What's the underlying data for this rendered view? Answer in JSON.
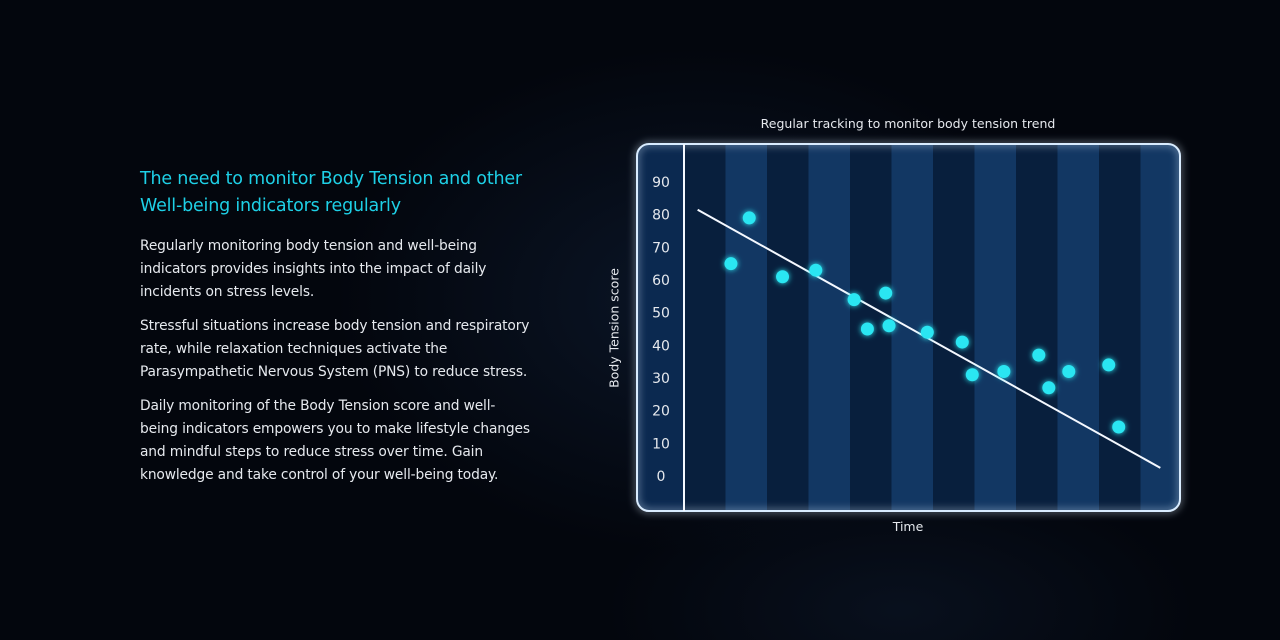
{
  "content": {
    "heading": "The need to monitor Body Tension and other Well-being indicators regularly",
    "paragraphs": [
      "Regularly monitoring body tension and well-being indicators provides insights into the impact of daily incidents on stress levels.",
      "Stressful situations increase body tension and respiratory rate, while relaxation techniques activate the Parasympathetic Nervous System (PNS) to reduce stress.",
      "Daily monitoring of the Body Tension score and well-being indicators empowers you to make lifestyle changes and mindful steps to reduce stress over time. Gain knowledge and take control of your well-being today."
    ]
  },
  "colors": {
    "heading": "#1ed0e6",
    "text": "#e6e9ee",
    "point": "#2ce6f2",
    "frame": "#d9ecff",
    "panel": "#0b2950",
    "band_light": "#143a66",
    "band_dark": "#081d3a"
  },
  "chart_data": {
    "type": "scatter",
    "title": "Regular tracking to monitor body tension trend",
    "xlabel": "Time",
    "ylabel": "Body Tension score",
    "ylim": [
      0,
      90
    ],
    "xlim": [
      0,
      28
    ],
    "y_ticks": [
      "0",
      "10",
      "20",
      "30",
      "40",
      "50",
      "60",
      "70",
      "80",
      "90"
    ],
    "grid": "vertical shaded bands",
    "points": [
      {
        "x": 2.7,
        "y": 65
      },
      {
        "x": 3.8,
        "y": 79
      },
      {
        "x": 5.8,
        "y": 61
      },
      {
        "x": 7.8,
        "y": 63
      },
      {
        "x": 10.1,
        "y": 54
      },
      {
        "x": 10.9,
        "y": 45
      },
      {
        "x": 12.0,
        "y": 56
      },
      {
        "x": 12.2,
        "y": 46
      },
      {
        "x": 14.5,
        "y": 44
      },
      {
        "x": 16.6,
        "y": 41
      },
      {
        "x": 17.2,
        "y": 31
      },
      {
        "x": 19.1,
        "y": 32
      },
      {
        "x": 21.2,
        "y": 37
      },
      {
        "x": 21.8,
        "y": 27
      },
      {
        "x": 23.0,
        "y": 32
      },
      {
        "x": 25.4,
        "y": 34
      },
      {
        "x": 26.0,
        "y": 15
      }
    ],
    "trendline": {
      "x": [
        0.7,
        28.5
      ],
      "y": [
        81.5,
        2.5
      ]
    }
  }
}
